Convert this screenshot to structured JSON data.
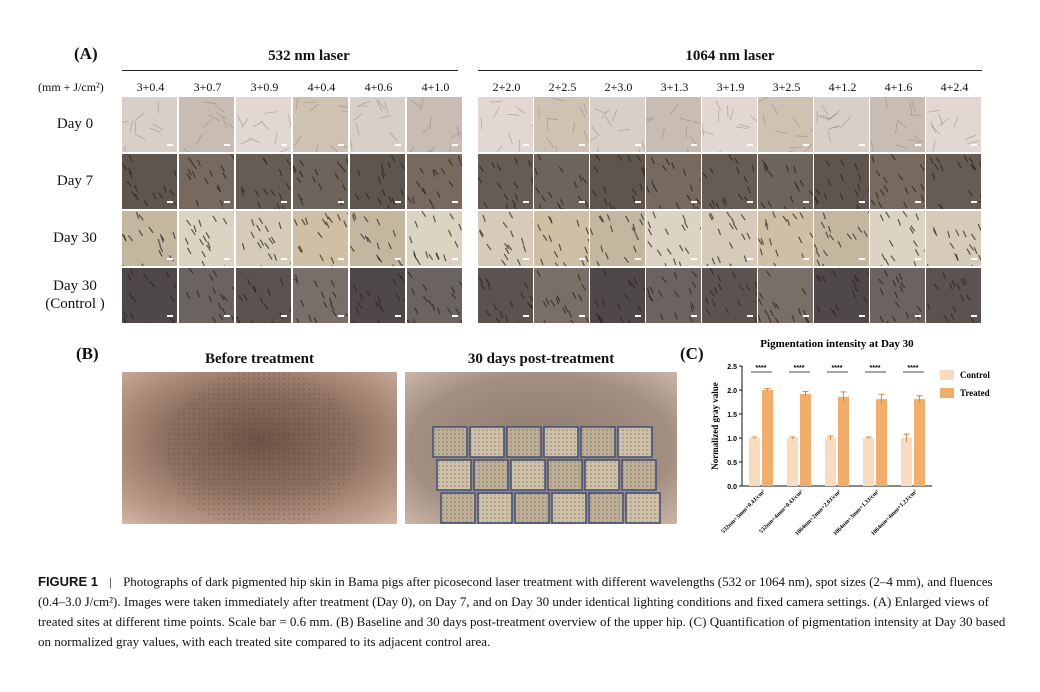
{
  "panel_a": {
    "letter": "(A)",
    "laser_532_title": "532 nm laser",
    "laser_1064_title": "1064 nm laser",
    "unit_label": "(mm + J/cm²)",
    "params_532": [
      "3+0.4",
      "3+0.7",
      "3+0.9",
      "4+0.4",
      "4+0.6",
      "4+1.0"
    ],
    "params_1064": [
      "2+2.0",
      "2+2.5",
      "2+3.0",
      "3+1.3",
      "3+1.9",
      "3+2.5",
      "4+1.2",
      "4+1.6",
      "4+2.4"
    ],
    "row_labels": [
      "Day 0",
      "Day 7",
      "Day 30",
      "Day 30\n(Control )"
    ]
  },
  "panel_b": {
    "letter": "(B)",
    "before_title": "Before treatment",
    "after_title": "30 days post-treatment"
  },
  "panel_c": {
    "letter": "(C)"
  },
  "chart_data": {
    "type": "bar",
    "title": "Pigmentation intensity at Day 30",
    "ylabel": "Normalized gray value",
    "xlabel": "",
    "ylim": [
      0,
      2.5
    ],
    "yticks": [
      "0.0",
      "0.5",
      "1.0",
      "1.5",
      "2.0",
      "2.5"
    ],
    "categories": [
      "532nm+3mm+0.4J/cm²",
      "532nm+4mm+0.4J/cm²",
      "1064nm+2mm+2.0J/cm²",
      "1064nm+3mm+1.3J/cm²",
      "1064nm+4mm+1.2J/cm²"
    ],
    "series": [
      {
        "name": "Control",
        "values": [
          1.0,
          1.0,
          1.0,
          1.0,
          1.0
        ],
        "errors": [
          0.02,
          0.02,
          0.04,
          0.02,
          0.08
        ],
        "color": "#f9dcc0"
      },
      {
        "name": "Treated",
        "values": [
          2.0,
          1.92,
          1.86,
          1.81,
          1.81
        ],
        "errors": [
          0.03,
          0.05,
          0.1,
          0.1,
          0.07
        ],
        "color": "#f1ad6c"
      }
    ],
    "significance": [
      "****",
      "****",
      "****",
      "****",
      "****"
    ],
    "legend_position": "right"
  },
  "caption": {
    "figure_label": "FIGURE 1",
    "separator": "|",
    "text": "Photographs of dark pigmented hip skin in Bama pigs after picosecond laser treatment with different wavelengths (532 or 1064 nm), spot sizes (2–4 mm), and fluences (0.4–3.0 J/cm²). Images were taken immediately after treatment (Day 0), on Day 7, and on Day 30 under identical lighting conditions and fixed camera settings. (A) Enlarged views of treated sites at different time points. Scale bar = 0.6 mm. (B) Baseline and 30 days post-treatment overview of the upper hip. (C) Quantification of pigmentation intensity at Day 30 based on normalized gray values, with each treated site compared to its adjacent control area."
  }
}
